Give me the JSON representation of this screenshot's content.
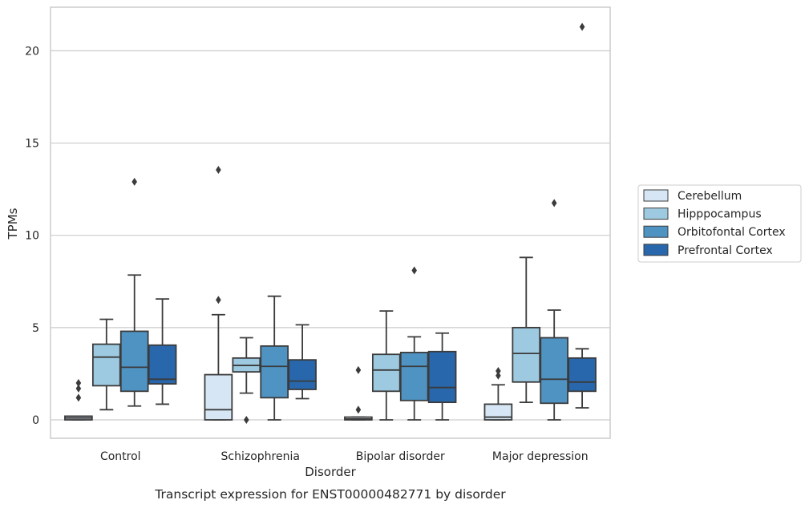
{
  "chart_data": {
    "type": "box",
    "caption": "Transcript expression for ENST00000482771 by disorder",
    "xlabel": "Disorder",
    "ylabel": "TPMs",
    "ylim": [
      -1,
      22.4
    ],
    "yticks": [
      0,
      5,
      10,
      15,
      20
    ],
    "grid": "horizontal",
    "legend_position": "right",
    "categories": [
      "Control",
      "Schizophrenia",
      "Bipolar disorder",
      "Major depression"
    ],
    "series": [
      {
        "name": "Cerebellum",
        "color": "#d6e6f4",
        "boxes": [
          {
            "whisker_low": 0.0,
            "q1": 0.0,
            "median": 0.1,
            "q3": 0.2,
            "whisker_high": 0.2,
            "outliers": [
              1.2,
              1.7,
              2.0
            ]
          },
          {
            "whisker_low": 0.0,
            "q1": 0.0,
            "median": 0.55,
            "q3": 2.45,
            "whisker_high": 5.7,
            "outliers": [
              6.5,
              13.55
            ]
          },
          {
            "whisker_low": 0.0,
            "q1": 0.0,
            "median": 0.05,
            "q3": 0.15,
            "whisker_high": 0.15,
            "outliers": [
              0.55,
              2.7
            ]
          },
          {
            "whisker_low": 0.0,
            "q1": 0.0,
            "median": 0.15,
            "q3": 0.85,
            "whisker_high": 1.9,
            "outliers": [
              2.4,
              2.65
            ]
          }
        ]
      },
      {
        "name": "Hipppocampus",
        "color": "#9ecae1",
        "boxes": [
          {
            "whisker_low": 0.55,
            "q1": 1.85,
            "median": 3.4,
            "q3": 4.1,
            "whisker_high": 5.45,
            "outliers": []
          },
          {
            "whisker_low": 1.45,
            "q1": 2.6,
            "median": 2.95,
            "q3": 3.35,
            "whisker_high": 4.45,
            "outliers": [
              0.0
            ]
          },
          {
            "whisker_low": 0.0,
            "q1": 1.55,
            "median": 2.7,
            "q3": 3.55,
            "whisker_high": 5.9,
            "outliers": []
          },
          {
            "whisker_low": 0.95,
            "q1": 2.05,
            "median": 3.6,
            "q3": 5.0,
            "whisker_high": 8.8,
            "outliers": []
          }
        ]
      },
      {
        "name": "Orbitofontal Cortex",
        "color": "#4f93c3",
        "boxes": [
          {
            "whisker_low": 0.75,
            "q1": 1.55,
            "median": 2.85,
            "q3": 4.8,
            "whisker_high": 7.85,
            "outliers": [
              12.9
            ]
          },
          {
            "whisker_low": 0.0,
            "q1": 1.2,
            "median": 2.9,
            "q3": 4.0,
            "whisker_high": 6.7,
            "outliers": []
          },
          {
            "whisker_low": 0.0,
            "q1": 1.05,
            "median": 2.9,
            "q3": 3.65,
            "whisker_high": 4.5,
            "outliers": [
              8.1
            ]
          },
          {
            "whisker_low": 0.0,
            "q1": 0.9,
            "median": 2.2,
            "q3": 4.45,
            "whisker_high": 5.95,
            "outliers": [
              11.75
            ]
          }
        ]
      },
      {
        "name": "Prefrontal Cortex",
        "color": "#2867ab",
        "boxes": [
          {
            "whisker_low": 0.85,
            "q1": 1.95,
            "median": 2.2,
            "q3": 4.05,
            "whisker_high": 6.55,
            "outliers": []
          },
          {
            "whisker_low": 1.15,
            "q1": 1.65,
            "median": 2.1,
            "q3": 3.25,
            "whisker_high": 5.15,
            "outliers": []
          },
          {
            "whisker_low": 0.0,
            "q1": 0.95,
            "median": 1.75,
            "q3": 3.7,
            "whisker_high": 4.7,
            "outliers": []
          },
          {
            "whisker_low": 0.65,
            "q1": 1.55,
            "median": 2.05,
            "q3": 3.35,
            "whisker_high": 3.85,
            "outliers": [
              21.3
            ]
          }
        ]
      }
    ]
  }
}
